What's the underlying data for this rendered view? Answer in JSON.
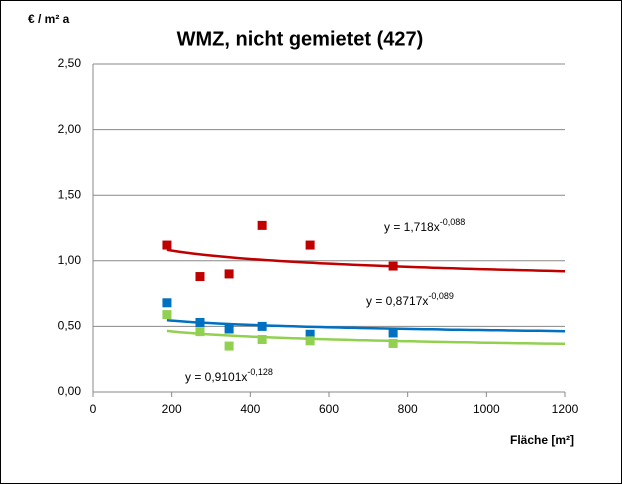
{
  "chart_data": {
    "type": "scatter",
    "title": "WMZ, nicht gemietet (427)",
    "y_label": "€ / m² a",
    "x_label": "Fläche [m²]",
    "xlim": [
      0,
      1200
    ],
    "xticks": [
      0,
      200,
      400,
      600,
      800,
      1000,
      1200
    ],
    "ylim": [
      0,
      2.5
    ],
    "yticks": [
      {
        "value": 0,
        "label": "0,00"
      },
      {
        "value": 0.5,
        "label": "0,50"
      },
      {
        "value": 1,
        "label": "1,00"
      },
      {
        "value": 1.5,
        "label": "1,50"
      },
      {
        "value": 2,
        "label": "2,00"
      },
      {
        "value": 2.5,
        "label": "2,50"
      }
    ],
    "grid": true,
    "series": [
      {
        "color": "#c00000",
        "x": [
          188,
          272,
          346,
          430,
          552,
          763
        ],
        "values": [
          1.12,
          0.88,
          0.9,
          1.27,
          1.12,
          0.96
        ],
        "trendline": {
          "label": "y = 1,718x",
          "exponent_label": "-0,088",
          "a": 1.718,
          "b": -0.088
        }
      },
      {
        "color": "#0070c0",
        "x": [
          188,
          272,
          346,
          430,
          552,
          763
        ],
        "values": [
          0.68,
          0.53,
          0.48,
          0.5,
          0.44,
          0.45
        ],
        "trendline": {
          "label": "y = 0,8717x",
          "exponent_label": "-0,089",
          "a": 0.8717,
          "b": -0.089
        }
      },
      {
        "color": "#92d050",
        "x": [
          188,
          272,
          346,
          430,
          552,
          763
        ],
        "values": [
          0.59,
          0.46,
          0.35,
          0.4,
          0.39,
          0.37
        ],
        "trendline": {
          "label": "y = 0,9101x",
          "exponent_label": "-0,128",
          "a": 0.9101,
          "b": -0.128
        }
      }
    ]
  }
}
